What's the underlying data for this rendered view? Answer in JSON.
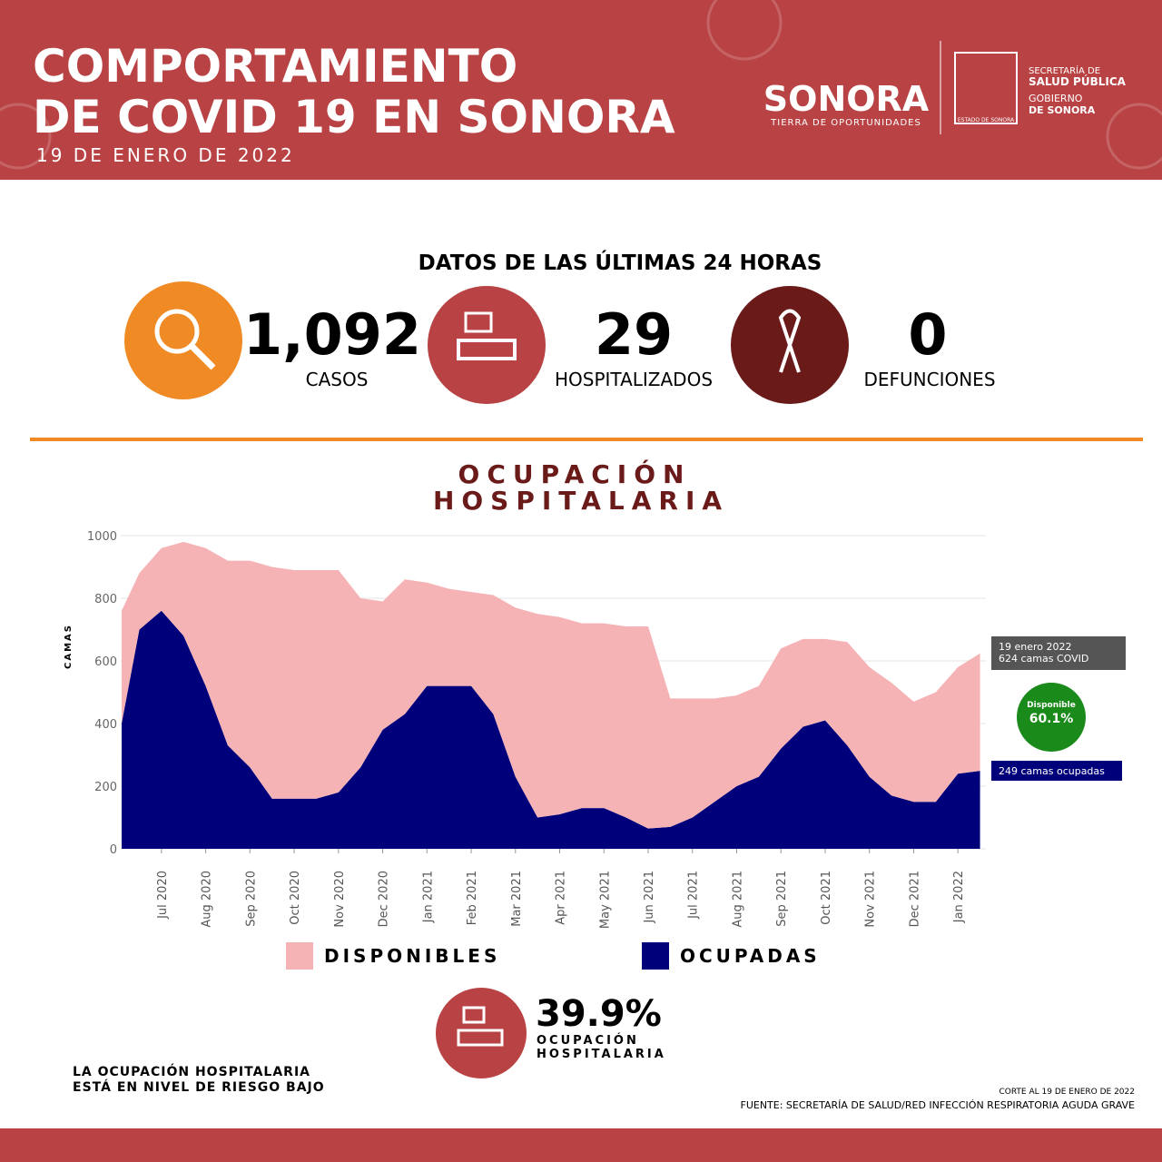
{
  "header": {
    "title_lines": [
      "COMPORTAMIENTO",
      "DE COVID 19 EN SONORA"
    ],
    "date": "19 DE ENERO DE 2022",
    "brand": "SONORA",
    "brand_tagline": "TIERRA DE OPORTUNIDADES",
    "seal": "ESTADO DE SONORA",
    "ministry_lines": [
      "SECRETARÍA DE",
      "SALUD PÚBLICA",
      "GOBIERNO",
      "DE SONORA"
    ]
  },
  "stats": {
    "heading": "DATOS DE LAS ÚLTIMAS 24 HORAS",
    "items": [
      {
        "value": "1,092",
        "label": "CASOS"
      },
      {
        "value": "29",
        "label": "HOSPITALIZADOS"
      },
      {
        "value": "0",
        "label": "DEFUNCIONES"
      }
    ]
  },
  "chart_data": {
    "type": "area",
    "title_lines": [
      "OCUPACIÓN",
      "HOSPITALARIA"
    ],
    "y_label": "CAMAS",
    "stacked": true,
    "x": [
      0.1,
      0.5,
      1.0,
      1.5,
      2.0,
      2.5,
      3.0,
      3.5,
      4.0,
      4.5,
      5.0,
      5.5,
      6.0,
      6.5,
      7.0,
      7.5,
      8.0,
      8.5,
      9.0,
      9.5,
      10.0,
      10.5,
      11.0,
      11.5,
      12.0,
      12.5,
      13.0,
      13.5,
      14.0,
      14.5,
      15.0,
      15.5,
      16.0,
      16.5,
      17.0,
      17.5,
      18.0,
      18.5,
      19.0,
      19.5
    ],
    "series": [
      {
        "name": "DISPONIBLES",
        "color": "#f6b3b6",
        "values": [
          360,
          180,
          200,
          300,
          440,
          590,
          660,
          740,
          730,
          730,
          710,
          540,
          410,
          430,
          330,
          310,
          300,
          380,
          540,
          650,
          630,
          590,
          590,
          610,
          645,
          410,
          380,
          330,
          290,
          290,
          320,
          280,
          260,
          330,
          350,
          360,
          320,
          350,
          340,
          375
        ]
      },
      {
        "name": "OCUPADAS",
        "color": "#00007a",
        "values": [
          400,
          700,
          760,
          680,
          520,
          330,
          260,
          160,
          160,
          160,
          180,
          260,
          380,
          430,
          520,
          520,
          520,
          430,
          230,
          100,
          110,
          130,
          130,
          100,
          65,
          70,
          100,
          150,
          200,
          230,
          320,
          390,
          410,
          330,
          230,
          170,
          150,
          150,
          240,
          249
        ]
      }
    ],
    "xlim": [
      0.08,
      19.55
    ],
    "xticks": [
      {
        "value": 1,
        "label": "Jul 2020"
      },
      {
        "value": 2,
        "label": "Aug 2020"
      },
      {
        "value": 3,
        "label": "Sep 2020"
      },
      {
        "value": 4,
        "label": "Oct 2020"
      },
      {
        "value": 5,
        "label": "Nov 2020"
      },
      {
        "value": 6,
        "label": "Dec 2020"
      },
      {
        "value": 7,
        "label": "Jan 2021"
      },
      {
        "value": 8,
        "label": "Feb 2021"
      },
      {
        "value": 9,
        "label": "Mar 2021"
      },
      {
        "value": 10,
        "label": "Apr 2021"
      },
      {
        "value": 11,
        "label": "May 2021"
      },
      {
        "value": 12,
        "label": "Jun 2021"
      },
      {
        "value": 13,
        "label": "Jul 2021"
      },
      {
        "value": 14,
        "label": "Aug 2021"
      },
      {
        "value": 15,
        "label": "Sep 2021"
      },
      {
        "value": 16,
        "label": "Oct 2021"
      },
      {
        "value": 17,
        "label": "Nov 2021"
      },
      {
        "value": 18,
        "label": "Dec 2021"
      },
      {
        "value": 19,
        "label": "Jan 2022"
      }
    ],
    "ylim": [
      0,
      1000
    ],
    "yticks": [
      0,
      200,
      400,
      600,
      800,
      1000
    ],
    "grid": true,
    "annotations": {
      "total_lines": [
        "19 enero 2022",
        "624 camas COVID"
      ],
      "available_label": "Disponible",
      "available_value": "60.1%",
      "occupied": "249  camas ocupadas"
    }
  },
  "summary": {
    "value": "39.9%",
    "label_lines": [
      "OCUPACIÓN",
      "HOSPITALARIA"
    ]
  },
  "note_lines": [
    "LA OCUPACIÓN HOSPITALARIA",
    "ESTÁ EN NIVEL DE RIESGO BAJO"
  ],
  "footer": {
    "cut": "CORTE AL 19 DE ENERO DE 2022",
    "source": "FUENTE: SECRETARÍA DE SALUD/RED INFECCIÓN RESPIRATORIA AGUDA GRAVE"
  }
}
